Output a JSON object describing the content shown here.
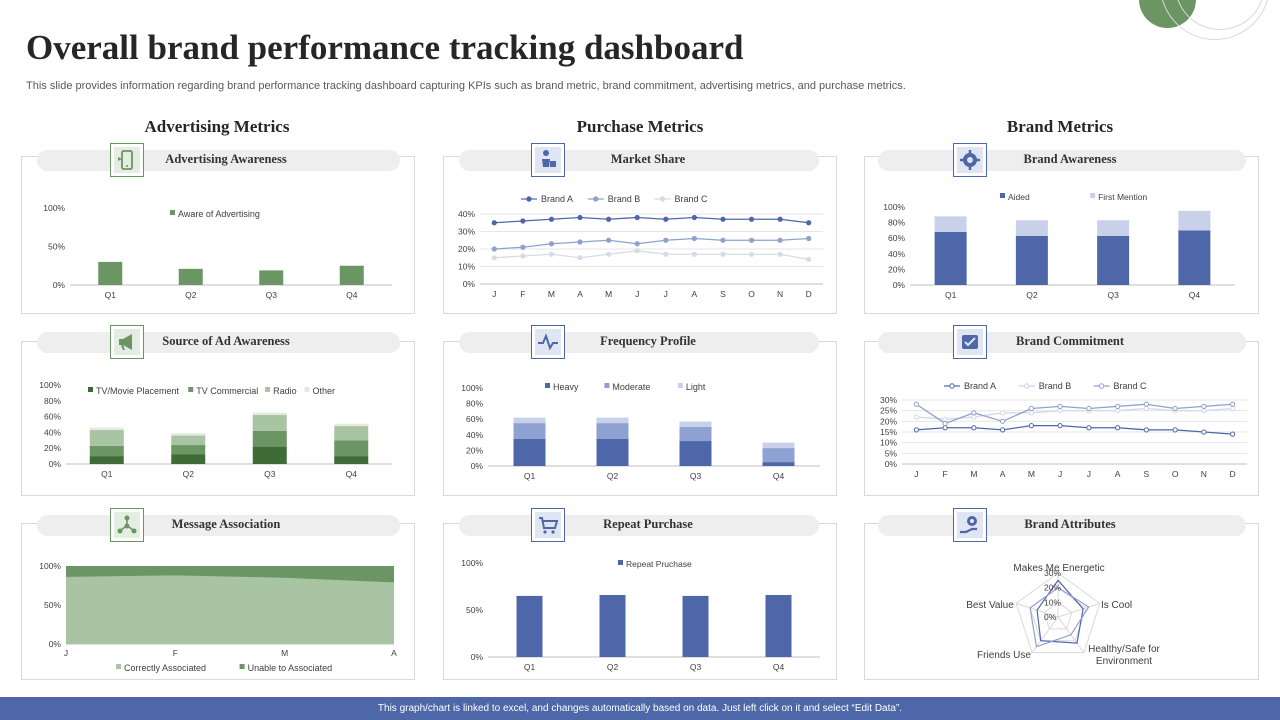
{
  "title": "Overall brand performance tracking dashboard",
  "subtitle": "This slide provides information regarding brand performance tracking dashboard capturing KPIs such as brand metric, brand commitment, advertising metrics, and purchase metrics.",
  "columns": [
    "Advertising Metrics",
    "Purchase Metrics",
    "Brand Metrics"
  ],
  "footer": "This graph/chart is linked to excel, and changes automatically based on data. Just left click on it and select “Edit Data”.",
  "colors": {
    "green": "#6b9563",
    "light_green": "#a9c4a2",
    "pale_green": "#c9d9c5",
    "blue": "#4e67a8",
    "mid_blue": "#8fa1d1",
    "light_blue": "#c9d1ea",
    "footer": "#4e67a8"
  },
  "panels": [
    {
      "title": "Advertising Awareness",
      "icon": "phone-ad-icon"
    },
    {
      "title": "Market Share",
      "icon": "shopping-person-icon"
    },
    {
      "title": "Brand Awareness",
      "icon": "brand-gear-icon"
    },
    {
      "title": "Source of Ad Awareness",
      "icon": "megaphone-icon"
    },
    {
      "title": "Frequency Profile",
      "icon": "pulse-icon"
    },
    {
      "title": "Brand Commitment",
      "icon": "handshake-icon"
    },
    {
      "title": "Message Association",
      "icon": "network-people-icon"
    },
    {
      "title": "Repeat Purchase",
      "icon": "cart-icon"
    },
    {
      "title": "Brand Attributes",
      "icon": "hand-gear-icon"
    }
  ],
  "chart_data": [
    {
      "id": "adv_awareness",
      "type": "bar",
      "categories": [
        "Q1",
        "Q2",
        "Q3",
        "Q4"
      ],
      "series": [
        {
          "name": "Aware of Advertising",
          "values": [
            30,
            21,
            19,
            25
          ]
        }
      ],
      "yticks": [
        "0%",
        "50%",
        "100%"
      ],
      "ylim": [
        0,
        100
      ]
    },
    {
      "id": "market_share",
      "type": "line",
      "categories": [
        "J",
        "F",
        "M",
        "A",
        "M",
        "J",
        "J",
        "A",
        "S",
        "O",
        "N",
        "D"
      ],
      "series": [
        {
          "name": "Brand A",
          "values": [
            35,
            36,
            37,
            38,
            37,
            38,
            37,
            38,
            37,
            37,
            37,
            35
          ]
        },
        {
          "name": "Brand B",
          "values": [
            20,
            21,
            23,
            24,
            25,
            23,
            25,
            26,
            25,
            25,
            25,
            26
          ]
        },
        {
          "name": "Brand C",
          "values": [
            15,
            16,
            17,
            15,
            17,
            19,
            17,
            17,
            17,
            17,
            17,
            14
          ]
        }
      ],
      "yticks": [
        "0%",
        "10%",
        "20%",
        "30%",
        "40%"
      ],
      "ylim": [
        0,
        40
      ]
    },
    {
      "id": "brand_awareness",
      "type": "bar",
      "stacked": true,
      "categories": [
        "Q1",
        "Q2",
        "Q3",
        "Q4"
      ],
      "series": [
        {
          "name": "Aided",
          "values": [
            68,
            63,
            63,
            70
          ]
        },
        {
          "name": "First Mention",
          "values": [
            20,
            20,
            20,
            25
          ]
        }
      ],
      "yticks": [
        "0%",
        "20%",
        "40%",
        "60%",
        "80%",
        "100%"
      ],
      "ylim": [
        0,
        100
      ]
    },
    {
      "id": "ad_source",
      "type": "bar",
      "stacked": true,
      "categories": [
        "Q1",
        "Q2",
        "Q3",
        "Q4"
      ],
      "series": [
        {
          "name": "TV/Movie Placement",
          "values": [
            10,
            12,
            22,
            10
          ]
        },
        {
          "name": "TV Commercial",
          "values": [
            13,
            12,
            20,
            20
          ]
        },
        {
          "name": "Radio",
          "values": [
            20,
            12,
            20,
            18
          ]
        },
        {
          "name": "Other",
          "values": [
            3,
            3,
            3,
            3
          ]
        }
      ],
      "yticks": [
        "0%",
        "20%",
        "40%",
        "60%",
        "80%",
        "100%"
      ],
      "ylim": [
        0,
        100
      ]
    },
    {
      "id": "frequency",
      "type": "bar",
      "stacked": true,
      "categories": [
        "Q1",
        "Q2",
        "Q3",
        "Q4"
      ],
      "series": [
        {
          "name": "Heavy",
          "values": [
            35,
            35,
            32,
            5
          ]
        },
        {
          "name": "Moderate",
          "values": [
            20,
            20,
            18,
            18
          ]
        },
        {
          "name": "Light",
          "values": [
            7,
            7,
            7,
            7
          ]
        }
      ],
      "yticks": [
        "0%",
        "20%",
        "40%",
        "60%",
        "80%",
        "100%"
      ],
      "ylim": [
        0,
        100
      ]
    },
    {
      "id": "brand_commitment",
      "type": "line",
      "categories": [
        "J",
        "F",
        "M",
        "A",
        "M",
        "J",
        "J",
        "A",
        "S",
        "O",
        "N",
        "D"
      ],
      "series": [
        {
          "name": "Brand A",
          "values": [
            16,
            17,
            17,
            16,
            18,
            18,
            17,
            17,
            16,
            16,
            15,
            14
          ]
        },
        {
          "name": "Brand B",
          "values": [
            22,
            21,
            22,
            24,
            24,
            25,
            25,
            25,
            26,
            25,
            25,
            26
          ]
        },
        {
          "name": "Brand C",
          "values": [
            28,
            19,
            24,
            20,
            26,
            27,
            26,
            27,
            28,
            26,
            27,
            28
          ]
        }
      ],
      "yticks": [
        "0%",
        "5%",
        "10%",
        "15%",
        "20%",
        "25%",
        "30%"
      ],
      "ylim": [
        0,
        30
      ]
    },
    {
      "id": "message_association",
      "type": "area",
      "stacked": true,
      "categories": [
        "J",
        "F",
        "M",
        "A"
      ],
      "series": [
        {
          "name": "Correctly Associated",
          "values": [
            86,
            88,
            85,
            79
          ]
        },
        {
          "name": "Unable to Associated",
          "values": [
            14,
            12,
            15,
            21
          ]
        }
      ],
      "yticks": [
        "0%",
        "50%",
        "100%"
      ],
      "ylim": [
        0,
        100
      ]
    },
    {
      "id": "repeat_purchase",
      "type": "bar",
      "categories": [
        "Q1",
        "Q2",
        "Q3",
        "Q4"
      ],
      "series": [
        {
          "name": "Repeat Pruchase",
          "values": [
            65,
            66,
            65,
            66
          ]
        }
      ],
      "yticks": [
        "0%",
        "50%",
        "100%"
      ],
      "ylim": [
        0,
        100
      ]
    },
    {
      "id": "brand_attributes",
      "type": "radar",
      "axes": [
        "Makes Me Energetic",
        "Is Cool",
        "Healthy/Safe for Environment",
        "Friends Use",
        "Best Value"
      ],
      "series": [
        {
          "values": [
            25,
            18,
            22,
            20,
            15
          ]
        },
        {
          "values": [
            20,
            22,
            15,
            25,
            20
          ]
        }
      ],
      "ticks": [
        "0%",
        "10%",
        "20%",
        "30%"
      ],
      "rmax": 30
    }
  ]
}
